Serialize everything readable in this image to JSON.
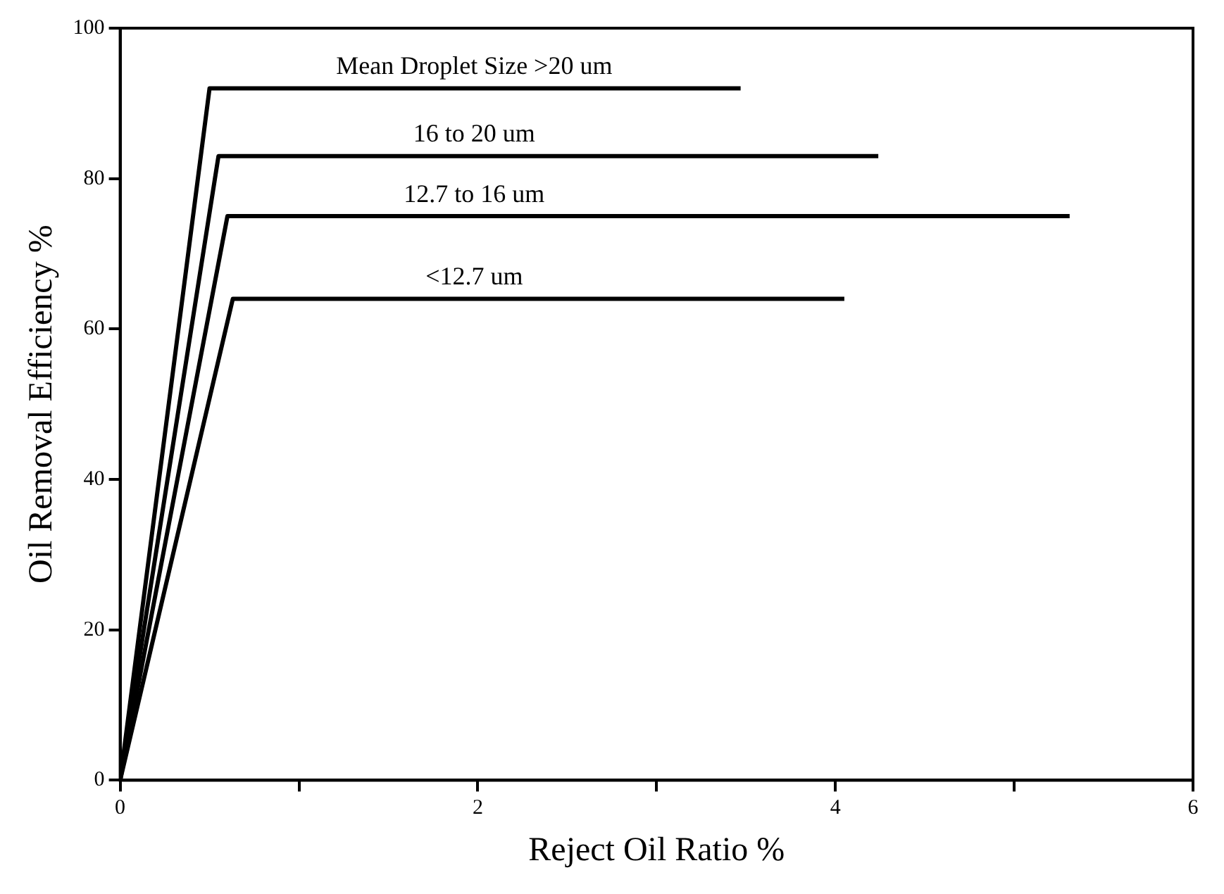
{
  "chart_data": {
    "type": "line",
    "xlabel": "Reject Oil Ratio %",
    "ylabel": "Oil Removal Efficiency %",
    "xlim": [
      0,
      6
    ],
    "xticks": [
      0,
      {
        "value": 1,
        "label": null
      },
      2,
      {
        "value": 3,
        "label": null
      },
      4,
      {
        "value": 5,
        "label": null
      },
      6
    ],
    "ylim": [
      0,
      100
    ],
    "yticks": [
      0,
      20,
      40,
      60,
      80,
      100
    ],
    "grid": false,
    "legend": false,
    "marker": "none",
    "line_style": "solid",
    "series": [
      {
        "name": "Mean Droplet Size >20 um",
        "color": "#000000",
        "x": [
          0,
          0.5,
          3.47
        ],
        "values": [
          0,
          92,
          92
        ]
      },
      {
        "name": "16 to 20 um",
        "color": "#000000",
        "x": [
          0,
          0.55,
          4.24
        ],
        "values": [
          0,
          83,
          83
        ]
      },
      {
        "name": "12.7 to 16 um",
        "color": "#000000",
        "x": [
          0,
          0.6,
          5.31
        ],
        "values": [
          0,
          75,
          75
        ]
      },
      {
        "name": "<12.7 um",
        "color": "#000000",
        "x": [
          0,
          0.63,
          4.05
        ],
        "values": [
          0,
          64,
          64
        ]
      }
    ]
  }
}
